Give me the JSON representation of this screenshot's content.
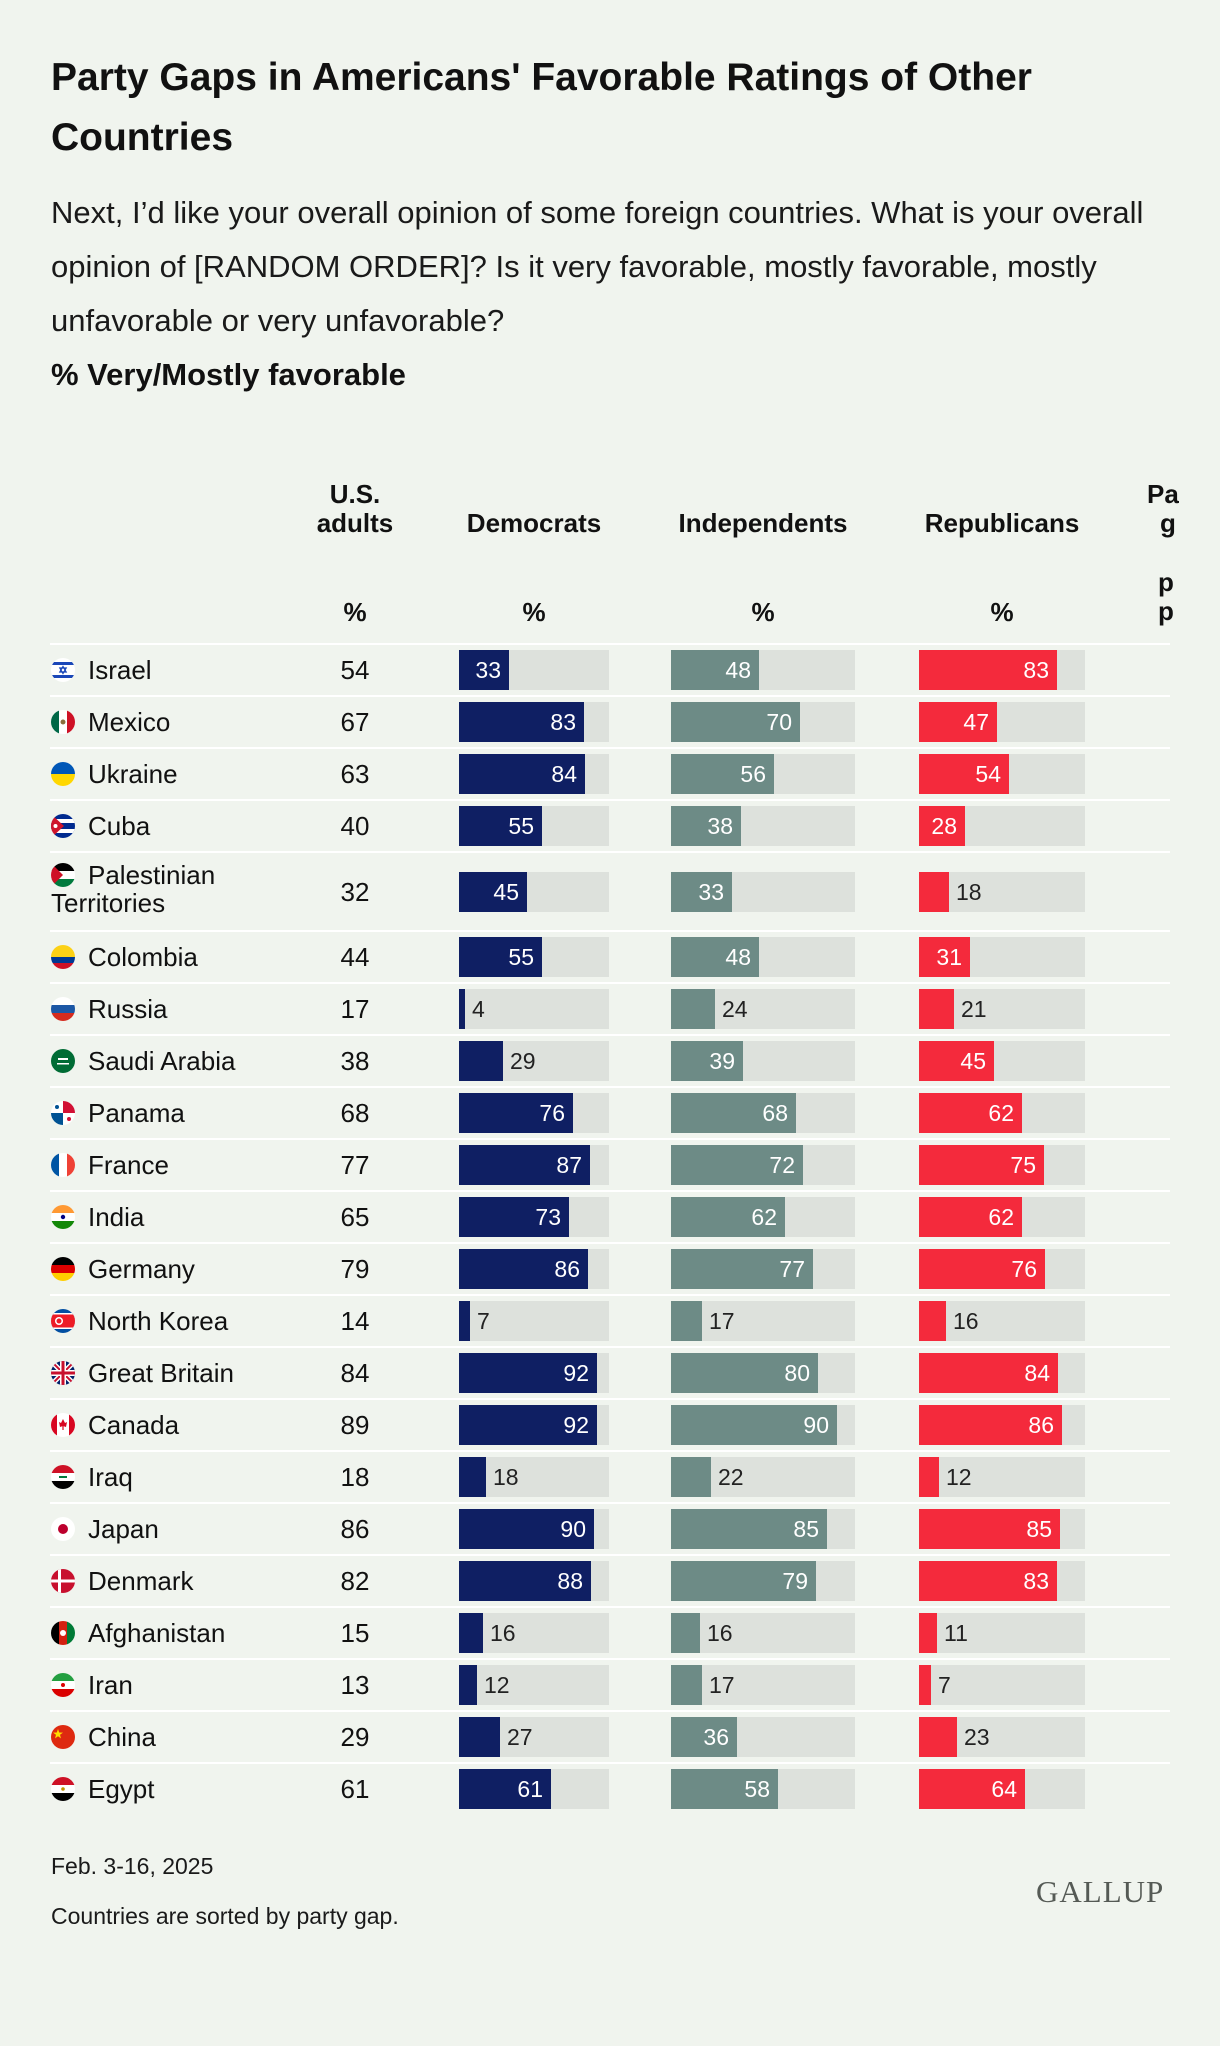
{
  "title": "Party Gaps in Americans' Favorable Ratings of Other Countries",
  "question": "Next, I’d like your overall opinion of some foreign countries. What is your overall opinion of [RANDOM ORDER]? Is it very favorable, mostly favorable, mostly unfavorable or very unfavorable?",
  "measure": "% Very/Mostly favorable",
  "columns": {
    "adults_line1": "U.S.",
    "adults_line2": "adults",
    "democrats": "Democrats",
    "independents": "Independents",
    "republicans": "Republicans",
    "gap_visible": [
      "Pa",
      "g",
      "p",
      "p"
    ],
    "pct": "%"
  },
  "colors": {
    "democrats": "#0f1f63",
    "independents": "#6d8b86",
    "republicans": "#f42a3c",
    "track": "#dde1dc",
    "background": "#f0f4ee"
  },
  "chart_data": {
    "type": "bar",
    "xlim": [
      0,
      100
    ],
    "categories": [
      "Israel",
      "Mexico",
      "Ukraine",
      "Cuba",
      "Palestinian Territories",
      "Colombia",
      "Russia",
      "Saudi Arabia",
      "Panama",
      "France",
      "India",
      "Germany",
      "North Korea",
      "Great Britain",
      "Canada",
      "Iraq",
      "Japan",
      "Denmark",
      "Afghanistan",
      "Iran",
      "China",
      "Egypt"
    ],
    "flag_icons": [
      "israel-flag-icon",
      "mexico-flag-icon",
      "ukraine-flag-icon",
      "cuba-flag-icon",
      "palestine-flag-icon",
      "colombia-flag-icon",
      "russia-flag-icon",
      "saudi-arabia-flag-icon",
      "panama-flag-icon",
      "france-flag-icon",
      "india-flag-icon",
      "germany-flag-icon",
      "north-korea-flag-icon",
      "great-britain-flag-icon",
      "canada-flag-icon",
      "iraq-flag-icon",
      "japan-flag-icon",
      "denmark-flag-icon",
      "afghanistan-flag-icon",
      "iran-flag-icon",
      "china-flag-icon",
      "egypt-flag-icon"
    ],
    "us_adults": [
      54,
      67,
      63,
      40,
      32,
      44,
      17,
      38,
      68,
      77,
      65,
      79,
      14,
      84,
      89,
      18,
      86,
      82,
      15,
      13,
      29,
      61
    ],
    "series": [
      {
        "name": "Democrats",
        "values": [
          33,
          83,
          84,
          55,
          45,
          55,
          4,
          29,
          76,
          87,
          73,
          86,
          7,
          92,
          92,
          18,
          90,
          88,
          16,
          12,
          27,
          61
        ]
      },
      {
        "name": "Independents",
        "values": [
          48,
          70,
          56,
          38,
          33,
          48,
          24,
          39,
          68,
          72,
          62,
          77,
          17,
          80,
          90,
          22,
          85,
          79,
          16,
          17,
          36,
          58
        ]
      },
      {
        "name": "Republicans",
        "values": [
          83,
          47,
          54,
          28,
          18,
          31,
          21,
          45,
          62,
          75,
          62,
          76,
          16,
          84,
          86,
          12,
          85,
          83,
          11,
          7,
          23,
          64
        ]
      }
    ]
  },
  "footer": {
    "date": "Feb. 3-16, 2025",
    "note": "Countries are sorted by party gap.",
    "logo": "GALLUP"
  }
}
